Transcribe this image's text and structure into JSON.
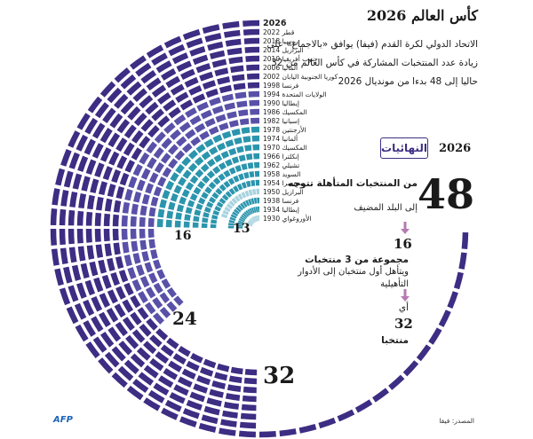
{
  "title": "كأس العالم 2026",
  "intro": "الاتحاد الدولي لكرة القدم (فيفا) يوافق «بالاجماع» على زيادة عدد المنتخبات المشاركة في كأس العالم من 32 حاليا إلى 48 بدءا من مونديال 2026",
  "finals": {
    "year": "2026",
    "badge": "النهائيات",
    "big_number": "48",
    "line1": "من المنتخبات المتأهلة تتوجه",
    "line2": "إلى البلد المضيف",
    "groups_number": "16",
    "groups_line1": "مجموعة من 3 منتخبات",
    "groups_line2": "ويتأهل أول منتخبان إلى الأدوار التأهيلية",
    "ie": "أي",
    "teams_number": "32",
    "teams_word": "منتخبا"
  },
  "source": "المصدر: فيفا",
  "logo": "AFP",
  "colors": {
    "c13": "#a8d3de",
    "c16": "#2b95ad",
    "c24": "#5951a8",
    "c32": "#3d2d83",
    "c48": "#3d2d83",
    "arrow": "#b57bb2"
  },
  "chart_data": {
    "type": "radial-bar",
    "description_unit": "number of teams",
    "editions": [
      {
        "year": "1930",
        "host": "الأوروغواي",
        "teams": 13
      },
      {
        "year": "1934",
        "host": "إيطاليا",
        "teams": 16
      },
      {
        "year": "1938",
        "host": "فرنسا",
        "teams": 16
      },
      {
        "year": "1950",
        "host": "البرازيل",
        "teams": 13
      },
      {
        "year": "1954",
        "host": "سويسرا",
        "teams": 16
      },
      {
        "year": "1958",
        "host": "السويد",
        "teams": 16
      },
      {
        "year": "1962",
        "host": "تشيلي",
        "teams": 16
      },
      {
        "year": "1966",
        "host": "إنكلترا",
        "teams": 16
      },
      {
        "year": "1970",
        "host": "المكسيك",
        "teams": 16
      },
      {
        "year": "1974",
        "host": "ألمانيا",
        "teams": 16
      },
      {
        "year": "1978",
        "host": "الأرجنتين",
        "teams": 16
      },
      {
        "year": "1982",
        "host": "إسبانيا",
        "teams": 24
      },
      {
        "year": "1986",
        "host": "المكسيك",
        "teams": 24
      },
      {
        "year": "1990",
        "host": "إيطاليا",
        "teams": 24
      },
      {
        "year": "1994",
        "host": "الولايات المتحدة",
        "teams": 24
      },
      {
        "year": "1998",
        "host": "فرنسا",
        "teams": 32
      },
      {
        "year": "2002",
        "host": "كوريا الجنوبية اليابان",
        "teams": 32
      },
      {
        "year": "2006",
        "host": "ألمانيا",
        "teams": 32
      },
      {
        "year": "2010",
        "host": "جنوب أفريقيا",
        "teams": 32
      },
      {
        "year": "2014",
        "host": "البرازيل",
        "teams": 32
      },
      {
        "year": "2018",
        "host": "روسيا",
        "teams": 32
      },
      {
        "year": "2022",
        "host": "قطر",
        "teams": 32
      },
      {
        "year": "2026",
        "host": "",
        "teams": 48
      }
    ],
    "band_labels": [
      "13",
      "16",
      "24",
      "32"
    ]
  }
}
